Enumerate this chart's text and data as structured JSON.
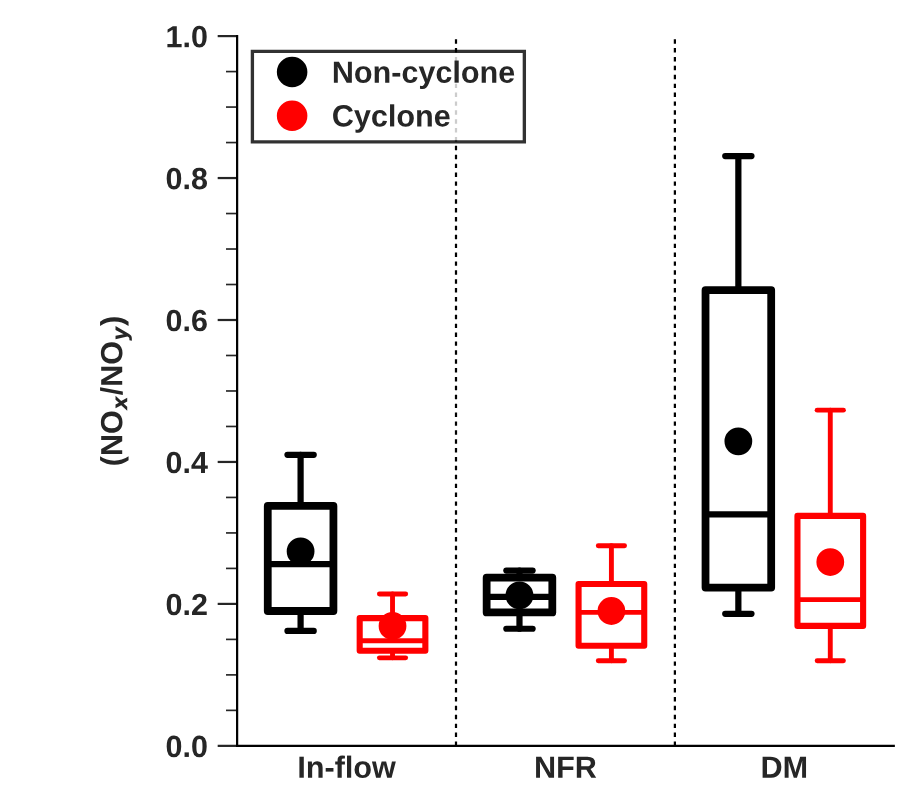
{
  "chart_data": {
    "type": "box",
    "ylabel": "(NO$_{x}$/NO$_{y}$)",
    "categories": [
      "In-flow",
      "NFR",
      "DM"
    ],
    "series": [
      {
        "name": "Non-cyclone",
        "color": "#000000",
        "boxes": [
          {
            "low": 0.162,
            "q1": 0.19,
            "median": 0.256,
            "q3": 0.338,
            "high": 0.41,
            "mean": 0.274
          },
          {
            "low": 0.165,
            "q1": 0.188,
            "median": 0.21,
            "q3": 0.237,
            "high": 0.247,
            "mean": 0.212
          },
          {
            "low": 0.186,
            "q1": 0.223,
            "median": 0.326,
            "q3": 0.642,
            "high": 0.831,
            "mean": 0.429
          }
        ]
      },
      {
        "name": "Cyclone",
        "color": "#ff0000",
        "boxes": [
          {
            "low": 0.124,
            "q1": 0.134,
            "median": 0.148,
            "q3": 0.18,
            "high": 0.214,
            "mean": 0.169
          },
          {
            "low": 0.12,
            "q1": 0.141,
            "median": 0.188,
            "q3": 0.228,
            "high": 0.282,
            "mean": 0.19
          },
          {
            "low": 0.12,
            "q1": 0.169,
            "median": 0.206,
            "q3": 0.324,
            "high": 0.473,
            "mean": 0.259
          }
        ]
      }
    ],
    "ylim": [
      0,
      1
    ],
    "yticks": [
      {
        "value": 0,
        "label": "0.0"
      },
      {
        "value": 0.05,
        "label": null
      },
      {
        "value": 0.1,
        "label": null
      },
      {
        "value": 0.15,
        "label": null
      },
      {
        "value": 0.2,
        "label": "0.2"
      },
      {
        "value": 0.25,
        "label": null
      },
      {
        "value": 0.3,
        "label": null
      },
      {
        "value": 0.35,
        "label": null
      },
      {
        "value": 0.4,
        "label": "0.4"
      },
      {
        "value": 0.45,
        "label": null
      },
      {
        "value": 0.5,
        "label": null
      },
      {
        "value": 0.55,
        "label": null
      },
      {
        "value": 0.6,
        "label": "0.6"
      },
      {
        "value": 0.65,
        "label": null
      },
      {
        "value": 0.7,
        "label": null
      },
      {
        "value": 0.75,
        "label": null
      },
      {
        "value": 0.8,
        "label": "0.8"
      },
      {
        "value": 0.85,
        "label": null
      },
      {
        "value": 0.9,
        "label": null
      },
      {
        "value": 0.95,
        "label": null
      },
      {
        "value": 1,
        "label": "1.0"
      }
    ],
    "legend": "top left",
    "marker": "circle",
    "grid": false
  }
}
